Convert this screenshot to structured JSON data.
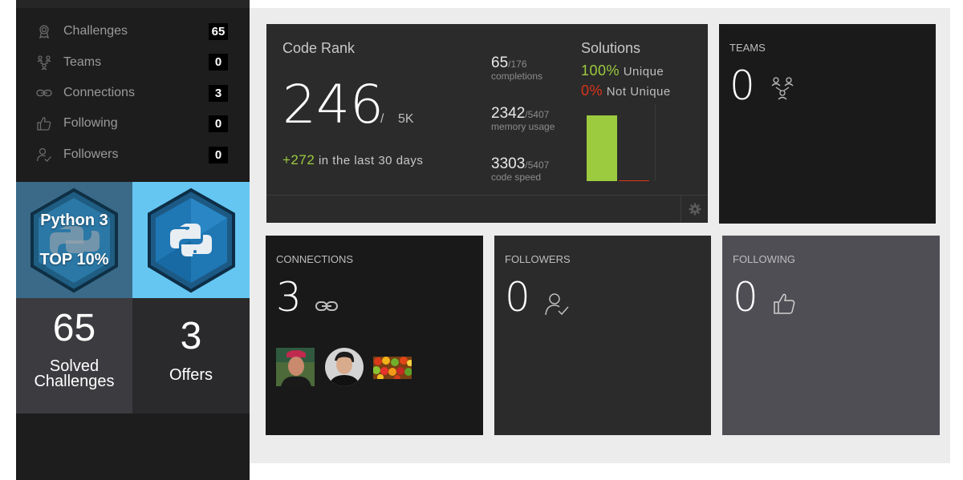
{
  "sidebar": {
    "items": [
      {
        "label": "Challenges",
        "count": "65",
        "icon": "award-icon"
      },
      {
        "label": "Teams",
        "count": "0",
        "icon": "team-icon"
      },
      {
        "label": "Connections",
        "count": "3",
        "icon": "link-icon"
      },
      {
        "label": "Following",
        "count": "0",
        "icon": "thumbs-up-icon"
      },
      {
        "label": "Followers",
        "count": "0",
        "icon": "user-check-icon"
      }
    ],
    "badge_language": "Python 3",
    "badge_rank": "TOP 10%",
    "solved_count": "65",
    "solved_label_line1": "Solved",
    "solved_label_line2": "Challenges",
    "offers_count": "3",
    "offers_label": "Offers"
  },
  "code_rank": {
    "title": "Code Rank",
    "rank": "246",
    "slash": "/",
    "total": "5K",
    "change": "+272",
    "change_label": "in the last 30 days",
    "stats": [
      {
        "value": "65",
        "denominator": "/176",
        "label": "completions"
      },
      {
        "value": "2342",
        "denominator": "/5407",
        "label": "memory usage"
      },
      {
        "value": "3303",
        "denominator": "/5407",
        "label": "code speed"
      }
    ]
  },
  "solutions": {
    "title": "Solutions",
    "unique_pct": "100%",
    "unique_label": "Unique",
    "not_unique_pct": "0%",
    "not_unique_label": "Not Unique",
    "unique_fraction": 1.0,
    "not_unique_fraction": 0.0
  },
  "teams": {
    "title": "TEAMS",
    "count": "0"
  },
  "connections": {
    "title": "CONNECTIONS",
    "count": "3"
  },
  "followers": {
    "title": "FOLLOWERS",
    "count": "0"
  },
  "following": {
    "title": "FOLLOWING",
    "count": "0"
  },
  "colors": {
    "accent_green": "#9ccb3f",
    "accent_red": "#d9341c",
    "python_badge_bg": "#3a6a87",
    "python_logo_bg": "#66c6f2"
  }
}
